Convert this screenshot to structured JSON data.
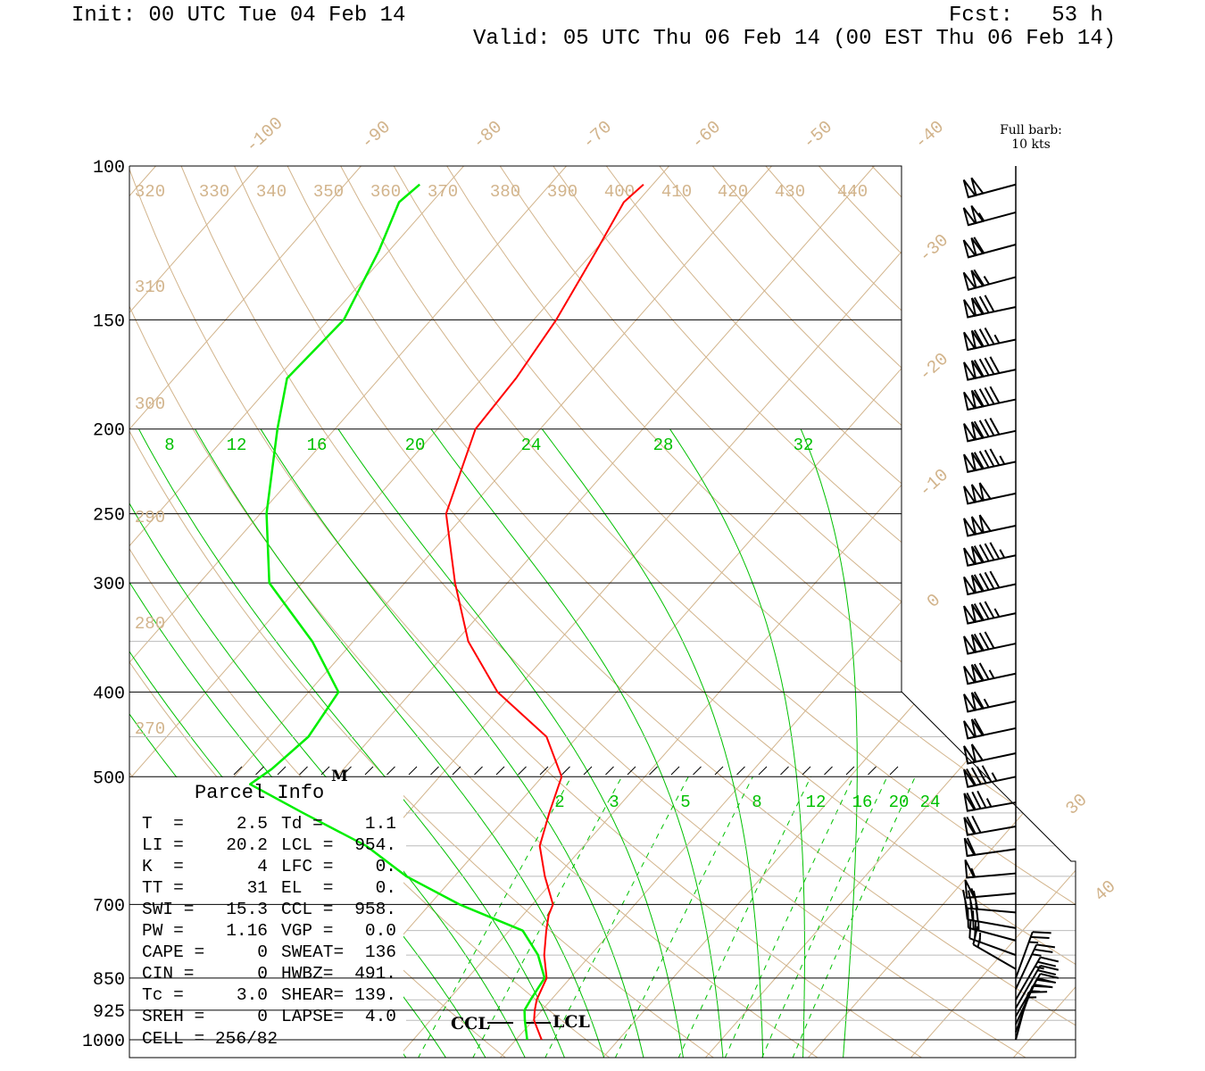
{
  "header": {
    "init": "Init: 00 UTC Tue 04 Feb 14",
    "fcst": "Fcst:   53 h",
    "valid": "Valid: 05 UTC Thu 06 Feb 14 (00 EST Thu 06 Feb 14)"
  },
  "legend": {
    "barb_line1": "Full barb:",
    "barb_line2": "10 kts"
  },
  "colors": {
    "temperature": "#ff0000",
    "dewpoint": "#00ee00",
    "background_lines": "#d2b48c",
    "moist_lines": "#00c000",
    "grid_gray": "#bbbbbb"
  },
  "parcel_info": {
    "title": "Parcel Info",
    "rows": [
      [
        "T  =",
        "2.5",
        "Td =",
        "1.1"
      ],
      [
        "LI =",
        "20.2",
        "LCL =",
        "954."
      ],
      [
        "K  =",
        "4",
        "LFC =",
        "0."
      ],
      [
        "TT =",
        "31",
        "EL  =",
        "0."
      ],
      [
        "SWI =",
        "15.3",
        "CCL =",
        "958."
      ],
      [
        "PW =",
        "1.16",
        "VGP =",
        "0.0"
      ],
      [
        "CAPE =",
        "0",
        "SWEAT=",
        "136"
      ],
      [
        "CIN =",
        "0",
        "HWBZ=",
        "491."
      ],
      [
        "Tc =",
        "3.0",
        "SHEAR=",
        "139."
      ],
      [
        "SREH =",
        "0",
        "LAPSE=",
        "4.0"
      ]
    ],
    "cell": "CELL = 256/82"
  },
  "markers": {
    "ccl": "CCL",
    "lcl": "LCL",
    "max_wind": "M"
  },
  "chart_data": {
    "type": "line",
    "kind": "skew-T log-P",
    "y_axis": {
      "scale": "log-pressure",
      "range_hPa": [
        100,
        1050
      ],
      "tick_labels": [
        "100",
        "150",
        "200",
        "250",
        "300",
        "400",
        "500",
        "700",
        "850",
        "925",
        "1000"
      ]
    },
    "isotherm_labels": [
      "-100",
      "-90",
      "-80",
      "-70",
      "-60",
      "-50",
      "-40",
      "-30",
      "-20",
      "-10",
      "0",
      "30",
      "40"
    ],
    "dry_adiabat_top_labels": [
      "320",
      "330",
      "340",
      "350",
      "360",
      "370",
      "380",
      "390",
      "400",
      "410",
      "420",
      "430",
      "440"
    ],
    "dry_adiabat_left_labels": [
      "310",
      "300",
      "290",
      "280",
      "270"
    ],
    "moist_adiabat_labels": [
      "8",
      "12",
      "16",
      "20",
      "24",
      "28",
      "32"
    ],
    "mixing_ratio_labels": [
      "2",
      "3",
      "5",
      "8",
      "12",
      "16",
      "20",
      "24"
    ],
    "series": [
      {
        "name": "Temperature",
        "units": "degC",
        "points": [
          [
            1000,
            2.5
          ],
          [
            950,
            0.1
          ],
          [
            925,
            -0.7
          ],
          [
            900,
            -1.4
          ],
          [
            850,
            -2.3
          ],
          [
            800,
            -4.5
          ],
          [
            750,
            -6.4
          ],
          [
            720,
            -7.5
          ],
          [
            700,
            -8.0
          ],
          [
            650,
            -11.2
          ],
          [
            600,
            -14.3
          ],
          [
            550,
            -16.2
          ],
          [
            500,
            -18.1
          ],
          [
            450,
            -23.0
          ],
          [
            400,
            -31.6
          ],
          [
            350,
            -38.8
          ],
          [
            300,
            -45.1
          ],
          [
            250,
            -51.9
          ],
          [
            200,
            -56.3
          ],
          [
            175,
            -56.7
          ],
          [
            150,
            -57.8
          ],
          [
            125,
            -59.8
          ],
          [
            110,
            -61.3
          ],
          [
            105,
            -60.9
          ]
        ]
      },
      {
        "name": "Dewpoint",
        "units": "degC",
        "points": [
          [
            1000,
            1.1
          ],
          [
            950,
            -0.8
          ],
          [
            925,
            -1.7
          ],
          [
            900,
            -2.0
          ],
          [
            850,
            -2.5
          ],
          [
            800,
            -5.1
          ],
          [
            750,
            -8.7
          ],
          [
            700,
            -17.1
          ],
          [
            650,
            -24.7
          ],
          [
            600,
            -31.2
          ],
          [
            550,
            -40.2
          ],
          [
            510,
            -47.8
          ],
          [
            490,
            -47.0
          ],
          [
            450,
            -46.2
          ],
          [
            400,
            -47.1
          ],
          [
            350,
            -54.0
          ],
          [
            300,
            -63.2
          ],
          [
            250,
            -69.4
          ],
          [
            200,
            -75.6
          ],
          [
            175,
            -79.0
          ],
          [
            150,
            -78.5
          ],
          [
            125,
            -81.0
          ],
          [
            110,
            -83.2
          ],
          [
            105,
            -82.7
          ]
        ]
      }
    ],
    "winds": {
      "units": "kts",
      "fields": [
        "pressure_hPa",
        "direction_deg",
        "speed_kt"
      ],
      "values": [
        [
          105,
          255,
          100
        ],
        [
          113,
          255,
          105
        ],
        [
          123,
          255,
          110
        ],
        [
          134,
          255,
          115
        ],
        [
          145,
          258,
          130
        ],
        [
          158,
          258,
          135
        ],
        [
          171,
          258,
          140
        ],
        [
          185,
          258,
          140
        ],
        [
          201,
          258,
          140
        ],
        [
          218,
          258,
          145
        ],
        [
          237,
          258,
          150
        ],
        [
          258,
          258,
          150
        ],
        [
          279,
          258,
          145
        ],
        [
          301,
          258,
          140
        ],
        [
          325,
          258,
          135
        ],
        [
          352,
          258,
          130
        ],
        [
          381,
          258,
          125
        ],
        [
          410,
          258,
          115
        ],
        [
          440,
          258,
          110
        ],
        [
          470,
          258,
          100
        ],
        [
          500,
          258,
          95
        ],
        [
          535,
          260,
          85
        ],
        [
          570,
          260,
          70
        ],
        [
          605,
          262,
          60
        ],
        [
          645,
          265,
          55
        ],
        [
          680,
          265,
          55
        ],
        [
          715,
          275,
          30
        ],
        [
          745,
          280,
          30
        ],
        [
          770,
          285,
          25
        ],
        [
          800,
          290,
          25
        ],
        [
          830,
          300,
          15
        ],
        [
          850,
          20,
          25
        ],
        [
          875,
          25,
          25
        ],
        [
          900,
          30,
          25
        ],
        [
          920,
          30,
          20
        ],
        [
          940,
          30,
          20
        ],
        [
          960,
          25,
          20
        ],
        [
          980,
          20,
          15
        ],
        [
          1000,
          15,
          15
        ]
      ]
    },
    "lcl_hPa": 954,
    "ccl_hPa": 958
  }
}
